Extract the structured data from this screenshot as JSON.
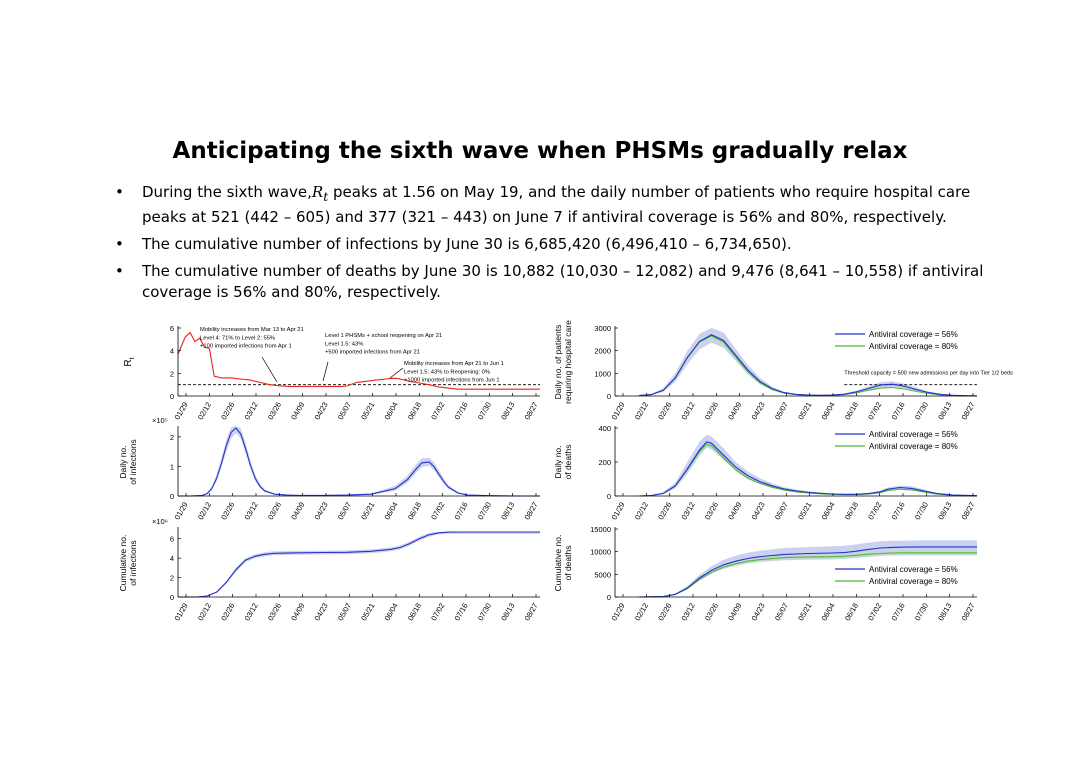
{
  "title": "Anticipating the sixth wave when PHSMs gradually relax",
  "bullets": [
    {
      "pre": "During the sixth wave,",
      "sym": "R",
      "sub": "t",
      "post": " peaks at 1.56 on May 19, and the daily number of patients who require hospital care peaks at 521 (442 – 605) and 377 (321 – 443) on June 7 if antiviral coverage is 56% and 80%, respectively."
    },
    {
      "text": "The cumulative number of infections by June 30 is 6,685,420 (6,496,410 – 6,734,650)."
    },
    {
      "text": "The cumulative number of deaths by June 30 is 10,882 (10,030 – 12,082) and 9,476 (8,641 – 10,558) if antiviral coverage is 56% and 80%, respectively."
    }
  ],
  "bullet_glyph": "•",
  "date_ticks": [
    "01/29",
    "02/12",
    "02/26",
    "03/12",
    "03/26",
    "04/09",
    "04/23",
    "05/07",
    "05/21",
    "06/04",
    "06/18",
    "07/02",
    "07/16",
    "07/30",
    "08/13",
    "08/27"
  ],
  "colors": {
    "rt": "#e8231b",
    "blue": "#2632c8",
    "green": "#4fb83a",
    "band_blue": "#b9c3ec",
    "band_green": "#c4dbc4",
    "axis": "#000000"
  },
  "chart_data": [
    {
      "id": "rt",
      "type": "line",
      "ylabel": "R",
      "ylabel_sub": "t",
      "ylim": [
        0,
        6
      ],
      "yticks": [
        "0",
        "2",
        "4",
        "6"
      ],
      "x": [
        0,
        3,
        5,
        7,
        9,
        11,
        13,
        15,
        18,
        22,
        26,
        30,
        34,
        38,
        42,
        46,
        50,
        56,
        60,
        64,
        68,
        70,
        74,
        78,
        82,
        86,
        88,
        90,
        92,
        94,
        96,
        100,
        104,
        108,
        112,
        116,
        120,
        124,
        126,
        130,
        134,
        140,
        146,
        150
      ],
      "series": [
        {
          "name": "Rt",
          "color": "rt",
          "values": [
            3.7,
            5.2,
            5.6,
            4.8,
            5.1,
            4.3,
            4.2,
            1.75,
            1.6,
            1.6,
            1.5,
            1.4,
            1.2,
            1.0,
            0.9,
            0.85,
            0.85,
            0.85,
            0.85,
            0.85,
            0.85,
            0.88,
            1.2,
            1.3,
            1.4,
            1.5,
            1.55,
            1.56,
            1.5,
            1.4,
            1.3,
            1.15,
            1.0,
            0.8,
            0.7,
            0.6,
            0.6,
            0.6,
            0.6,
            0.6,
            0.6,
            0.6,
            0.6,
            0.6
          ]
        }
      ],
      "threshold": 1,
      "annotations": [
        {
          "lines": [
            "Mobility increases from Mar 13 to Apr 21",
            "Level 4: 71% to Level 2: 55%",
            "+100 imported infections from Apr 1"
          ]
        },
        {
          "lines": [
            "Level 1 PHSMs + school reopening on Apr 21",
            "Level 1.5: 43%",
            "+500 imported infections from Apr 21"
          ]
        },
        {
          "lines": [
            "Mobility increases from Apr 21 to Jun 1",
            "Level 1.5: 43% to Reopening: 0%",
            "+1000 imported infections from Jun 1"
          ]
        }
      ]
    },
    {
      "id": "hosp",
      "type": "line",
      "ylabel_lines": [
        "Daily no. of patients",
        "requiring hospital care"
      ],
      "ylim": [
        0,
        3000
      ],
      "yticks": [
        "0",
        "1000",
        "2000",
        "3000"
      ],
      "x": [
        10,
        15,
        20,
        25,
        30,
        35,
        40,
        45,
        50,
        55,
        60,
        65,
        70,
        75,
        80,
        85,
        90,
        95,
        100,
        105,
        110,
        115,
        120,
        125,
        130,
        135,
        140,
        145,
        150
      ],
      "series": [
        {
          "name": "Antiviral coverage = 56%",
          "color": "blue",
          "values": [
            20,
            60,
            250,
            800,
            1700,
            2400,
            2700,
            2450,
            1800,
            1150,
            650,
            330,
            150,
            70,
            40,
            30,
            40,
            80,
            180,
            330,
            480,
            521,
            430,
            280,
            150,
            70,
            30,
            12,
            5
          ]
        },
        {
          "name": "Antiviral coverage = 80%",
          "color": "green",
          "values": [
            20,
            60,
            250,
            800,
            1700,
            2400,
            2650,
            2380,
            1720,
            1080,
            590,
            290,
            130,
            60,
            35,
            25,
            30,
            60,
            140,
            250,
            350,
            377,
            310,
            200,
            110,
            50,
            22,
            9,
            4
          ]
        }
      ],
      "band": {
        "lower": [
          10,
          40,
          180,
          620,
          1400,
          2050,
          2350,
          2120,
          1550,
          950,
          520,
          260,
          110,
          50,
          28,
          20,
          28,
          55,
          130,
          240,
          350,
          410,
          340,
          220,
          115,
          50,
          20,
          8,
          3
        ],
        "upper": [
          30,
          90,
          340,
          1000,
          2000,
          2750,
          3000,
          2800,
          2080,
          1380,
          800,
          420,
          200,
          95,
          55,
          42,
          55,
          110,
          240,
          430,
          610,
          650,
          540,
          360,
          200,
          95,
          42,
          18,
          8
        ]
      },
      "threshold": 500,
      "threshold_label": "Threshold capacity = 500 new admissions per day into Tier 1/2 beds",
      "legend": "top-right"
    },
    {
      "id": "inf",
      "type": "line",
      "ylabel_lines": [
        "Daily no.",
        "of infections"
      ],
      "multiplier": "×10⁵",
      "ylim": [
        0,
        2.3
      ],
      "yticks": [
        "0",
        "1",
        "2"
      ],
      "x": [
        0,
        5,
        10,
        12,
        14,
        16,
        18,
        20,
        22,
        24,
        26,
        28,
        30,
        32,
        34,
        36,
        40,
        45,
        50,
        60,
        70,
        80,
        90,
        95,
        98,
        101,
        104,
        106,
        108,
        110,
        112,
        116,
        120,
        130,
        140,
        150
      ],
      "series": [
        {
          "name": "Daily infections",
          "color": "blue",
          "values": [
            0,
            0,
            0.02,
            0.08,
            0.25,
            0.6,
            1.1,
            1.7,
            2.15,
            2.3,
            2.1,
            1.6,
            1.05,
            0.6,
            0.32,
            0.17,
            0.06,
            0.03,
            0.02,
            0.02,
            0.03,
            0.06,
            0.25,
            0.55,
            0.85,
            1.12,
            1.15,
            1.0,
            0.75,
            0.5,
            0.3,
            0.1,
            0.03,
            0.01,
            0,
            0
          ]
        }
      ],
      "band": {
        "lower": [
          0,
          0,
          0.01,
          0.06,
          0.2,
          0.5,
          0.95,
          1.5,
          1.95,
          2.12,
          1.95,
          1.45,
          0.92,
          0.5,
          0.26,
          0.13,
          0.04,
          0.02,
          0.01,
          0.01,
          0.02,
          0.04,
          0.18,
          0.45,
          0.72,
          0.98,
          1.02,
          0.88,
          0.65,
          0.42,
          0.24,
          0.07,
          0.02,
          0,
          0,
          0
        ],
        "upper": [
          0,
          0,
          0.03,
          0.11,
          0.32,
          0.72,
          1.28,
          1.9,
          2.32,
          2.45,
          2.3,
          1.8,
          1.2,
          0.72,
          0.4,
          0.22,
          0.09,
          0.05,
          0.03,
          0.03,
          0.05,
          0.09,
          0.34,
          0.68,
          1.0,
          1.28,
          1.3,
          1.15,
          0.88,
          0.6,
          0.37,
          0.14,
          0.05,
          0.02,
          0.01,
          0
        ]
      }
    },
    {
      "id": "deaths",
      "type": "line",
      "ylabel_lines": [
        "Daily no.",
        "of deaths"
      ],
      "ylim": [
        0,
        400
      ],
      "yticks": [
        "0",
        "200",
        "400"
      ],
      "x": [
        10,
        15,
        20,
        25,
        30,
        35,
        38,
        40,
        45,
        50,
        55,
        60,
        65,
        70,
        75,
        80,
        85,
        90,
        95,
        100,
        105,
        110,
        113,
        118,
        123,
        128,
        133,
        140,
        150
      ],
      "series": [
        {
          "name": "Antiviral coverage = 56%",
          "color": "blue",
          "values": [
            0,
            3,
            15,
            60,
            160,
            270,
            318,
            310,
            240,
            170,
            120,
            85,
            60,
            42,
            30,
            22,
            16,
            12,
            10,
            10,
            14,
            25,
            40,
            50,
            45,
            30,
            15,
            5,
            2
          ]
        },
        {
          "name": "Antiviral coverage = 80%",
          "color": "green",
          "values": [
            0,
            3,
            15,
            58,
            155,
            262,
            305,
            295,
            225,
            155,
            105,
            75,
            52,
            36,
            25,
            18,
            13,
            10,
            8,
            8,
            11,
            20,
            32,
            40,
            36,
            24,
            12,
            4,
            1
          ]
        }
      ],
      "band": {
        "lower": [
          0,
          2,
          10,
          45,
          130,
          235,
          285,
          275,
          210,
          148,
          102,
          72,
          50,
          35,
          25,
          18,
          13,
          10,
          8,
          8,
          11,
          20,
          32,
          40,
          35,
          23,
          11,
          4,
          1
        ],
        "upper": [
          0,
          5,
          22,
          80,
          200,
          320,
          360,
          350,
          280,
          200,
          145,
          105,
          75,
          52,
          38,
          28,
          21,
          16,
          13,
          13,
          18,
          32,
          50,
          62,
          57,
          38,
          20,
          7,
          3
        ]
      },
      "legend": "top-right"
    },
    {
      "id": "cuminf",
      "type": "line",
      "ylabel_lines": [
        "Cumulative no.",
        "of infections"
      ],
      "multiplier": "×10⁶",
      "ylim": [
        0,
        7
      ],
      "yticks": [
        "0",
        "2",
        "4",
        "6"
      ],
      "x": [
        0,
        8,
        12,
        16,
        20,
        24,
        28,
        32,
        36,
        40,
        50,
        60,
        70,
        80,
        88,
        92,
        96,
        100,
        104,
        108,
        112,
        118,
        126,
        135,
        150
      ],
      "series": [
        {
          "name": "Cumulative infections",
          "color": "blue",
          "values": [
            0,
            0,
            0.1,
            0.5,
            1.5,
            2.8,
            3.8,
            4.2,
            4.4,
            4.5,
            4.55,
            4.58,
            4.6,
            4.7,
            4.9,
            5.1,
            5.5,
            6.0,
            6.4,
            6.6,
            6.68,
            6.69,
            6.69,
            6.69,
            6.69
          ]
        }
      ],
      "band": {
        "lower": [
          0,
          0,
          0.08,
          0.42,
          1.35,
          2.6,
          3.6,
          4.0,
          4.2,
          4.3,
          4.35,
          4.38,
          4.4,
          4.5,
          4.7,
          4.9,
          5.3,
          5.8,
          6.2,
          6.45,
          6.5,
          6.5,
          6.5,
          6.5,
          6.5
        ],
        "upper": [
          0,
          0,
          0.12,
          0.58,
          1.65,
          3.0,
          4.0,
          4.4,
          4.6,
          4.7,
          4.75,
          4.78,
          4.8,
          4.9,
          5.1,
          5.3,
          5.7,
          6.2,
          6.6,
          6.72,
          6.73,
          6.73,
          6.73,
          6.73,
          6.73
        ]
      }
    },
    {
      "id": "cumdeaths",
      "type": "line",
      "ylabel_lines": [
        "Cumulative no.",
        "of deaths"
      ],
      "ylim": [
        0,
        15000
      ],
      "yticks": [
        "0",
        "5000",
        "10000",
        "15000"
      ],
      "x": [
        10,
        20,
        25,
        30,
        35,
        40,
        45,
        50,
        55,
        60,
        70,
        80,
        90,
        95,
        100,
        105,
        110,
        115,
        120,
        130,
        140,
        150
      ],
      "series": [
        {
          "name": "Antiviral coverage = 56%",
          "color": "blue",
          "values": [
            0,
            100,
            600,
            2000,
            4200,
            5900,
            7100,
            7900,
            8500,
            8900,
            9400,
            9600,
            9700,
            9800,
            10100,
            10500,
            10800,
            10950,
            11000,
            11050,
            11050,
            11050
          ]
        },
        {
          "name": "Antiviral coverage = 80%",
          "color": "green",
          "values": [
            0,
            90,
            550,
            1850,
            3900,
            5500,
            6600,
            7350,
            7900,
            8250,
            8700,
            8850,
            8900,
            9000,
            9200,
            9450,
            9600,
            9700,
            9750,
            9750,
            9750,
            9750
          ]
        }
      ],
      "band": {
        "lower": [
          0,
          80,
          500,
          1700,
          3600,
          5100,
          6200,
          6900,
          7400,
          7700,
          8100,
          8200,
          8300,
          8400,
          8600,
          8900,
          9100,
          9200,
          9250,
          9250,
          9250,
          9250
        ],
        "upper": [
          0,
          130,
          750,
          2400,
          4900,
          6800,
          8200,
          9100,
          9800,
          10200,
          10800,
          11000,
          11200,
          11300,
          11600,
          12000,
          12300,
          12400,
          12450,
          12500,
          12500,
          12500
        ]
      },
      "legend": "bottom-right"
    }
  ]
}
